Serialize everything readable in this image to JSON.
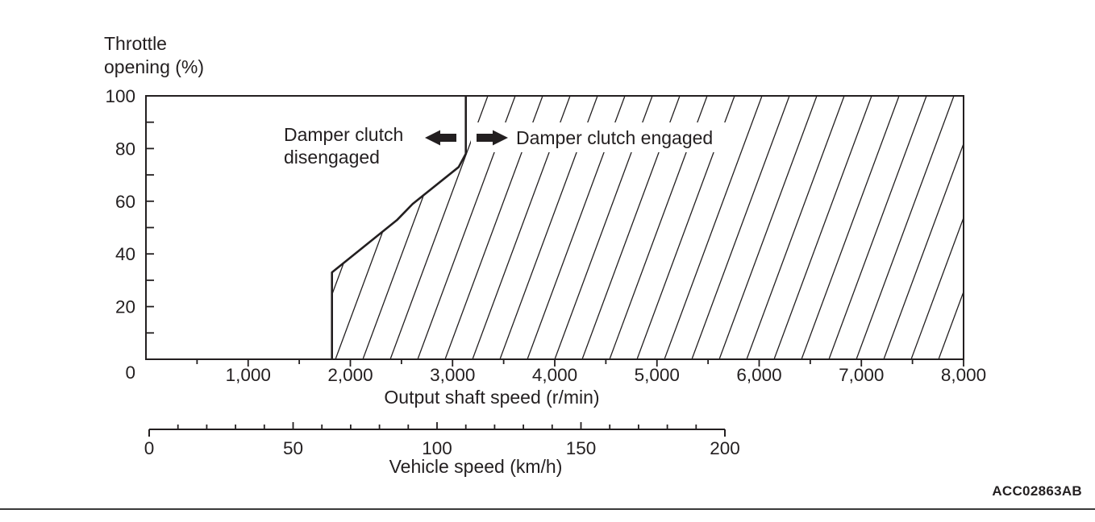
{
  "figure_code": "ACC02863AB",
  "colors": {
    "line": "#231f20",
    "text": "#231f20",
    "background": "#ffffff"
  },
  "annotations": {
    "disengaged_line1": "Damper clutch",
    "disengaged_line2": "disengaged",
    "engaged": "Damper clutch engaged",
    "arrow_left": "arrow pointing left toward disengaged region",
    "arrow_right": "arrow pointing right toward engaged region"
  },
  "chart_data": {
    "type": "area",
    "grid": false,
    "legend": false,
    "x_axis": {
      "label": "Output shaft speed (r/min)",
      "min": 0,
      "max": 8000,
      "major_tick_step": 1000,
      "minor_tick_step": 500,
      "tick_labels": [
        "0",
        "1,000",
        "2,000",
        "3,000",
        "4,000",
        "5,000",
        "6,000",
        "7,000",
        "8,000"
      ]
    },
    "y_axis": {
      "label": "Throttle opening (%)",
      "label_lines": [
        "Throttle",
        "opening (%)"
      ],
      "min": 0,
      "max": 100,
      "major_tick_step": 20,
      "minor_tick_step": 10,
      "tick_labels": [
        "0",
        "20",
        "40",
        "60",
        "80",
        "100"
      ]
    },
    "secondary_x_axis": {
      "label": "Vehicle speed (km/h)",
      "min": 0,
      "max": 200,
      "major_tick_step": 50,
      "minor_tick_step": 10,
      "tick_labels": [
        "0",
        "50",
        "100",
        "150",
        "200"
      ]
    },
    "series": [
      {
        "name": "Damper clutch engagement boundary",
        "x_rpm": [
          3130,
          3130,
          3060,
          2610,
          2460,
          1820,
          1820
        ],
        "y_throttle_pct": [
          100,
          78,
          73,
          59,
          53,
          33,
          0
        ]
      }
    ],
    "regions": [
      {
        "label": "Damper clutch disengaged",
        "side": "left_of_boundary",
        "fill": "plain"
      },
      {
        "label": "Damper clutch engaged",
        "side": "right_of_boundary",
        "fill": "diagonal-hatch"
      }
    ]
  }
}
